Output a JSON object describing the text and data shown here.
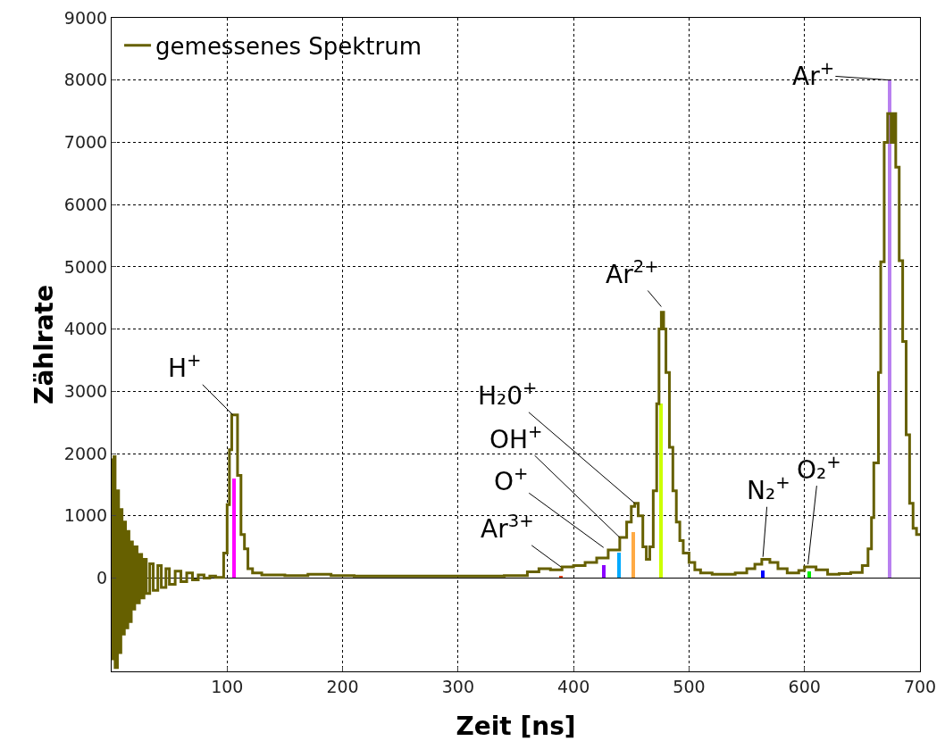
{
  "chart_data": {
    "type": "step",
    "xlabel": "Zeit [ns]",
    "ylabel": "Zählrate",
    "xlim": [
      0,
      700
    ],
    "ylim": [
      -1500,
      9000
    ],
    "xticks": [
      100,
      200,
      300,
      400,
      500,
      600,
      700
    ],
    "yticks": [
      0,
      1000,
      2000,
      3000,
      4000,
      5000,
      6000,
      7000,
      8000,
      9000
    ],
    "grid": true,
    "legend": "top left",
    "line_style": "solid",
    "marker": "none",
    "series": [
      {
        "name": "gemessenes Spektrum",
        "color": "#666000",
        "x": [
          0,
          1,
          2,
          3,
          5,
          6,
          8,
          9,
          11,
          12,
          14,
          15,
          17,
          18,
          20,
          22,
          24,
          26,
          28,
          30,
          33,
          36,
          40,
          43,
          47,
          50,
          55,
          60,
          65,
          70,
          75,
          80,
          85,
          90,
          97,
          100,
          102,
          104,
          109,
          112,
          115,
          118,
          122,
          130,
          150,
          170,
          190,
          210,
          250,
          300,
          340,
          360,
          370,
          380,
          390,
          400,
          410,
          420,
          430,
          440,
          446,
          450,
          453,
          456,
          460,
          463,
          466,
          469,
          472,
          474,
          476,
          478,
          480,
          483,
          486,
          489,
          492,
          495,
          500,
          505,
          510,
          520,
          540,
          550,
          557,
          563,
          570,
          577,
          585,
          595,
          600,
          610,
          620,
          630,
          640,
          650,
          655,
          658,
          660,
          664,
          666,
          669,
          672,
          675,
          677,
          679,
          682,
          685,
          688,
          691,
          694,
          697,
          700
        ],
        "values": [
          1900,
          -1300,
          1950,
          -1440,
          1400,
          -1200,
          1100,
          -900,
          900,
          -800,
          750,
          -700,
          580,
          -500,
          500,
          -400,
          380,
          -320,
          300,
          -250,
          230,
          -200,
          200,
          -150,
          150,
          -100,
          110,
          -60,
          80,
          -30,
          50,
          0,
          30,
          10,
          400,
          1180,
          2060,
          2620,
          1650,
          700,
          470,
          150,
          80,
          50,
          40,
          60,
          40,
          30,
          30,
          30,
          40,
          100,
          150,
          130,
          180,
          200,
          250,
          320,
          450,
          650,
          900,
          1150,
          1200,
          1000,
          500,
          300,
          500,
          1400,
          2800,
          4000,
          4270,
          4000,
          3300,
          2100,
          1400,
          900,
          600,
          400,
          250,
          130,
          80,
          60,
          80,
          150,
          220,
          300,
          250,
          150,
          80,
          120,
          180,
          130,
          60,
          70,
          90,
          200,
          470,
          970,
          1850,
          3300,
          5080,
          7000,
          7460,
          7000,
          7460,
          6600,
          5100,
          3800,
          2300,
          1200,
          800,
          700,
          700
        ]
      },
      {
        "type": "bar",
        "x": [
          106,
          389,
          426,
          439,
          452,
          476,
          564,
          604,
          674
        ],
        "values": [
          1600,
          30,
          200,
          410,
          740,
          2800,
          120,
          100,
          8000
        ],
        "colors": [
          "#ff00ff",
          "#e0401a",
          "#8a00ff",
          "#00aaff",
          "#ffaa44",
          "#ccff00",
          "#0000ff",
          "#00ee00",
          "#b980f0"
        ]
      }
    ],
    "annotations": [
      {
        "text": "H$^{+}$",
        "x": 105,
        "y": 2620
      },
      {
        "text": "Ar$^{2+}$",
        "x": 476,
        "y": 4360
      },
      {
        "text": "H₂0$^{+}$",
        "x": 453,
        "y": 1200
      },
      {
        "text": "OH$^{+}$",
        "x": 440,
        "y": 650
      },
      {
        "text": "O$^{+}$",
        "x": 426,
        "y": 490
      },
      {
        "text": "Ar$^{3+}$",
        "x": 389,
        "y": 180
      },
      {
        "text": "N₂$^{+}$",
        "x": 564,
        "y": 340
      },
      {
        "text": "O₂$^{+}$",
        "x": 603,
        "y": 220
      },
      {
        "text": "Ar$^{+}$",
        "x": 674,
        "y": 8000
      }
    ]
  }
}
